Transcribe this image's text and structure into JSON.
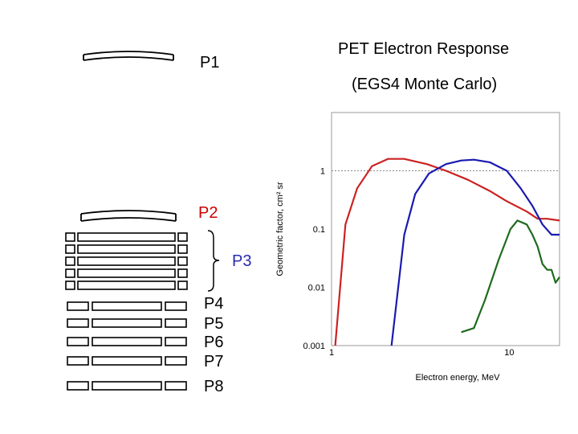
{
  "title": "PET Electron Response",
  "subtitle": "(EGS4 Monte Carlo)",
  "labels": {
    "p1": "P1",
    "p2": "P2",
    "p3": "P3",
    "p4": "P4",
    "p5": "P5",
    "p6": "P6",
    "p7": "P7",
    "p8": "P8"
  },
  "colors": {
    "p2": "#cc0000",
    "p3": "#2a2ab0",
    "text": "#000000"
  },
  "chart_data": {
    "type": "line",
    "ylabel": "Geometric factor, cm² sr",
    "xlabel": "Electron energy, MeV",
    "x_scale": "log",
    "y_scale": "log",
    "xlim": [
      1,
      20
    ],
    "ylim": [
      0.001,
      10
    ],
    "x_ticks": [
      "1",
      "10"
    ],
    "y_ticks": [
      "1",
      "0.1",
      "0.01",
      "0.001"
    ],
    "reference_line_y": 1,
    "series": [
      {
        "color": "#cc2222",
        "points": [
          [
            1.05,
            0.001
          ],
          [
            1.2,
            0.12
          ],
          [
            1.4,
            0.5
          ],
          [
            1.7,
            1.2
          ],
          [
            2.1,
            1.6
          ],
          [
            2.6,
            1.6
          ],
          [
            3.5,
            1.3
          ],
          [
            4.5,
            1.0
          ],
          [
            6,
            0.7
          ],
          [
            8,
            0.45
          ],
          [
            10,
            0.3
          ],
          [
            13,
            0.2
          ],
          [
            15,
            0.15
          ],
          [
            17,
            0.15
          ],
          [
            20,
            0.14
          ]
        ]
      },
      {
        "color": "#1a1ab0",
        "points": [
          [
            2.2,
            0.001
          ],
          [
            2.6,
            0.08
          ],
          [
            3,
            0.4
          ],
          [
            3.6,
            0.9
          ],
          [
            4.5,
            1.3
          ],
          [
            5.5,
            1.5
          ],
          [
            6.5,
            1.55
          ],
          [
            8,
            1.4
          ],
          [
            10,
            1.0
          ],
          [
            12,
            0.5
          ],
          [
            14,
            0.25
          ],
          [
            16,
            0.12
          ],
          [
            18,
            0.08
          ],
          [
            20,
            0.08
          ]
        ]
      },
      {
        "color": "#1e6b1e",
        "points": [
          [
            5.5,
            0.0017
          ],
          [
            6.5,
            0.002
          ],
          [
            7.5,
            0.006
          ],
          [
            9,
            0.03
          ],
          [
            10.5,
            0.1
          ],
          [
            11.5,
            0.14
          ],
          [
            13,
            0.12
          ],
          [
            14,
            0.08
          ],
          [
            15,
            0.05
          ],
          [
            16,
            0.025
          ],
          [
            17,
            0.02
          ],
          [
            18,
            0.02
          ],
          [
            19,
            0.012
          ],
          [
            20,
            0.015
          ]
        ]
      }
    ]
  }
}
